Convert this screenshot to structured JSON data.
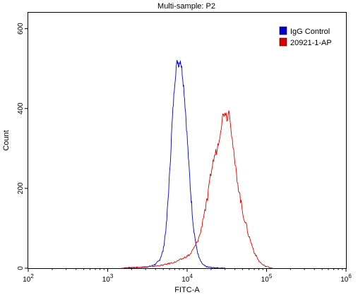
{
  "chart_data": {
    "type": "line",
    "title": "Multi-sample: P2",
    "xlabel": "FITC-A",
    "ylabel": "Count",
    "x_scale": "log",
    "xlim": [
      100,
      1000000
    ],
    "ylim": [
      0,
      640
    ],
    "x_ticks": [
      {
        "value": 100,
        "base": "10",
        "exp": "2"
      },
      {
        "value": 1000,
        "base": "10",
        "exp": "3"
      },
      {
        "value": 10000,
        "base": "10",
        "exp": "4"
      },
      {
        "value": 100000,
        "base": "10",
        "exp": "5"
      },
      {
        "value": 1000000,
        "base": "10",
        "exp": "6"
      }
    ],
    "y_ticks": [
      "0",
      "200",
      "400",
      "600"
    ],
    "legend_position": "top-right",
    "series": [
      {
        "name": "IgG Control",
        "color": "#0000cc",
        "x": [
          1500,
          2000,
          2500,
          3000,
          3500,
          4000,
          4500,
          5000,
          5500,
          6000,
          6500,
          7000,
          7300,
          7600,
          7900,
          8200,
          8500,
          8800,
          9100,
          9500,
          10000,
          10500,
          11000,
          11500,
          12000,
          13000,
          14000,
          15000,
          16000,
          17000,
          18000,
          20000,
          22000,
          24000,
          26000,
          30000
        ],
        "y": [
          0,
          1,
          2,
          3,
          5,
          10,
          20,
          45,
          110,
          230,
          370,
          470,
          505,
          520,
          510,
          525,
          505,
          480,
          450,
          400,
          330,
          260,
          200,
          150,
          105,
          55,
          28,
          15,
          8,
          5,
          3,
          2,
          1,
          1,
          0,
          0
        ]
      },
      {
        "name": "20921-1-AP",
        "color": "#dd0000",
        "x": [
          1500,
          2000,
          3000,
          4000,
          5000,
          6000,
          7000,
          8000,
          9000,
          10000,
          11000,
          12000,
          13000,
          14000,
          15000,
          16000,
          17000,
          18000,
          19000,
          20000,
          22000,
          24000,
          26000,
          28000,
          30000,
          32000,
          34000,
          36000,
          38000,
          40000,
          45000,
          50000,
          55000,
          60000,
          70000,
          80000,
          90000,
          100000,
          110000,
          120000
        ],
        "y": [
          0,
          2,
          3,
          5,
          8,
          12,
          15,
          20,
          25,
          30,
          35,
          48,
          60,
          75,
          95,
          130,
          150,
          170,
          205,
          240,
          280,
          300,
          340,
          380,
          395,
          375,
          400,
          345,
          300,
          260,
          195,
          140,
          110,
          80,
          40,
          18,
          8,
          4,
          2,
          0
        ]
      }
    ]
  }
}
